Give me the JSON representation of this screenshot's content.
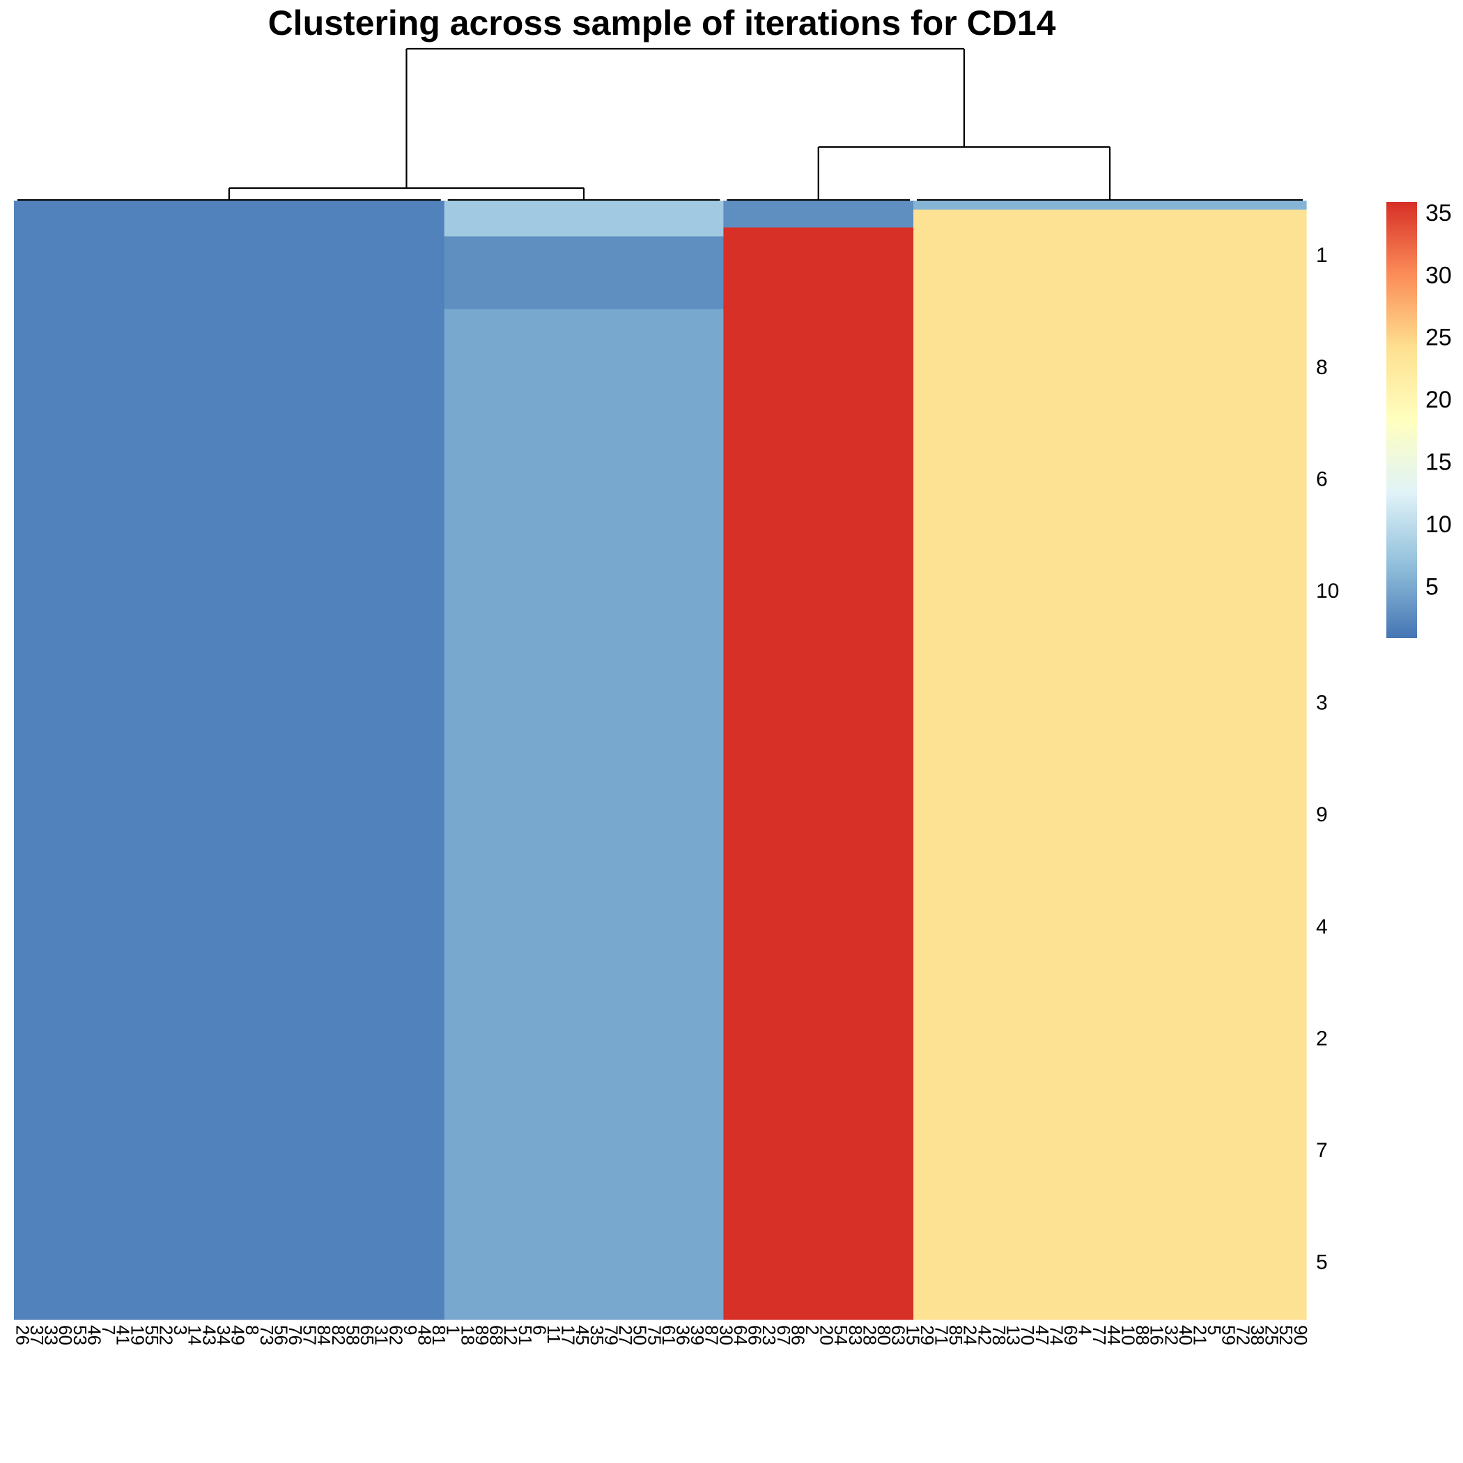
{
  "chart_data": {
    "type": "heatmap",
    "title": "Clustering across sample of iterations for CD14",
    "colormap": [
      "#4575B4",
      "#91BFDB",
      "#E0F3F8",
      "#FFFFBF",
      "#FEE090",
      "#FC8D59",
      "#D73027"
    ],
    "value_range": [
      1,
      36
    ],
    "legend": {
      "placement": "right",
      "ticks": [
        5,
        10,
        15,
        20,
        25,
        30,
        35
      ]
    },
    "column_clusters": [
      {
        "weight": 0.333,
        "segments": [
          {
            "value": 2,
            "weight": 1
          }
        ]
      },
      {
        "weight": 0.216,
        "segments": [
          {
            "value": 8,
            "weight": 0.032
          },
          {
            "value": 3,
            "weight": 0.065
          },
          {
            "value": 5,
            "weight": 0.903
          }
        ]
      },
      {
        "weight": 0.147,
        "segments": [
          {
            "value": 3,
            "weight": 0.024
          },
          {
            "value": 36,
            "weight": 0.976
          }
        ]
      },
      {
        "weight": 0.304,
        "segments": [
          {
            "value": 6,
            "weight": 0.008
          },
          {
            "value": 24,
            "weight": 0.992
          }
        ]
      }
    ],
    "column_dendrogram": {
      "root_split": [
        1,
        2,
        3
      ],
      "note": "left group = clusters 1-2, right group = clusters 3-4"
    },
    "column_labels": [
      "26",
      "37",
      "33",
      "60",
      "53",
      "46",
      "7",
      "41",
      "19",
      "55",
      "22",
      "3",
      "14",
      "43",
      "34",
      "49",
      "8",
      "73",
      "56",
      "76",
      "57",
      "84",
      "82",
      "58",
      "65",
      "31",
      "62",
      "9",
      "48",
      "81",
      "1",
      "18",
      "89",
      "68",
      "12",
      "51",
      "6",
      "11",
      "17",
      "45",
      "35",
      "79",
      "27",
      "50",
      "75",
      "61",
      "36",
      "39",
      "87",
      "30",
      "64",
      "66",
      "23",
      "67",
      "86",
      "2",
      "20",
      "54",
      "83",
      "28",
      "80",
      "63",
      "15",
      "29",
      "71",
      "85",
      "24",
      "42",
      "78",
      "13",
      "70",
      "47",
      "74",
      "69",
      "4",
      "77",
      "44",
      "10",
      "88",
      "16",
      "32",
      "40",
      "21",
      "5",
      "59",
      "72",
      "38",
      "25",
      "52",
      "90"
    ],
    "row_labels": [
      "1",
      "8",
      "6",
      "10",
      "3",
      "9",
      "4",
      "2",
      "7",
      "5"
    ]
  }
}
